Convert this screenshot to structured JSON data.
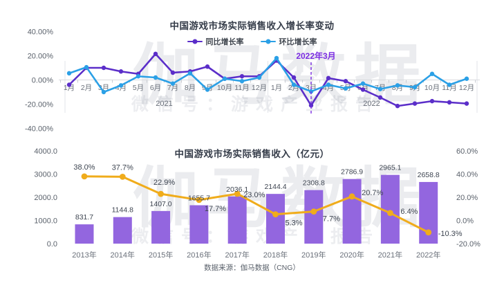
{
  "watermark": {
    "brand": "伽马数据",
    "wechat": "微信号：游戏产业报告"
  },
  "source": "数据来源：伽马数据（CNG）",
  "chart_data": [
    {
      "type": "line",
      "title": "中国游戏市场实际销售收入增长率变动",
      "x": [
        "1月",
        "2月",
        "3月",
        "4月",
        "5月",
        "6月",
        "7月",
        "8月",
        "9月",
        "10月",
        "11月",
        "12月",
        "1月",
        "2月",
        "3月",
        "4月",
        "5月",
        "6月",
        "7月",
        "8月",
        "9月",
        "10月",
        "11月",
        "12月"
      ],
      "year_groups": [
        "2021",
        "2022"
      ],
      "series": [
        {
          "name": "同比增长率",
          "color": "#5b2ec9",
          "values": [
            -4,
            10,
            10,
            7,
            5,
            21.5,
            6,
            7,
            11,
            1,
            3,
            3,
            16,
            2,
            -21,
            1.5,
            -1,
            -8,
            -14.5,
            -21.5,
            -19.5,
            -17.5,
            -18.5,
            -19.5
          ]
        },
        {
          "name": "环比增长率",
          "color": "#2ba0e6",
          "values": [
            5.5,
            10.5,
            -10,
            -4.5,
            3,
            2,
            -3,
            5.5,
            -8,
            1,
            -1,
            2,
            18,
            -4,
            -9.5,
            -4,
            -7,
            -3,
            -7.5,
            -4.5,
            -6,
            5,
            -4,
            1
          ]
        }
      ],
      "ylim": [
        -40,
        40
      ],
      "yticks": [
        {
          "label": "40.00%",
          "value": 40
        },
        {
          "label": "20.00%",
          "value": 20
        },
        {
          "label": "0.00%",
          "value": 0
        },
        {
          "label": "-20.00%",
          "value": -20
        },
        {
          "label": "-40.00%",
          "value": -40
        }
      ],
      "annotation": {
        "text": "2022年3月",
        "month_index": 14
      },
      "legend_position": "top",
      "grid": "zero-line-only"
    },
    {
      "type": "bar+line",
      "title": "中国游戏市场实际销售收入（亿元）",
      "categories": [
        "2013年",
        "2014年",
        "2015年",
        "2016年",
        "2017年",
        "2018年",
        "2019年",
        "2020年",
        "2021年",
        "2022年"
      ],
      "bars": {
        "color": "#9366df",
        "values": [
          831.7,
          1144.8,
          1407.0,
          1655.7,
          2036.1,
          2144.4,
          2308.8,
          2786.9,
          2965.1,
          2658.8
        ],
        "labels": [
          "831.7",
          "1144.8",
          "1407.0",
          "1655.7",
          "2036.1",
          "2144.4",
          "2308.8",
          "2786.9",
          "2965.1",
          "2658.8"
        ]
      },
      "line": {
        "color": "#f0ac1b",
        "values": [
          38.0,
          37.7,
          22.9,
          17.7,
          23.0,
          5.3,
          7.7,
          20.7,
          6.4,
          -10.3
        ],
        "labels": [
          "38.0%",
          "37.7%",
          "22.9%",
          "17.7%",
          "23.0%",
          "5.3%",
          "7.7%",
          "20.7%",
          "6.4%",
          "-10.3%"
        ]
      },
      "left_axis": {
        "range": [
          0,
          4000
        ],
        "ticks": [
          {
            "label": "4000.0",
            "value": 4000
          },
          {
            "label": "3000.0",
            "value": 3000
          },
          {
            "label": "2000.0",
            "value": 2000
          },
          {
            "label": "1000.0",
            "value": 1000
          },
          {
            "label": "0.0",
            "value": 0
          }
        ]
      },
      "right_axis": {
        "range": [
          -20,
          60
        ],
        "ticks": [
          {
            "label": "60.0%",
            "value": 60
          },
          {
            "label": "40.0%",
            "value": 40
          },
          {
            "label": "20.0%",
            "value": 20
          },
          {
            "label": "0.0%",
            "value": 0
          },
          {
            "label": "-20.0%",
            "value": -20
          }
        ]
      },
      "grid": "off"
    }
  ]
}
